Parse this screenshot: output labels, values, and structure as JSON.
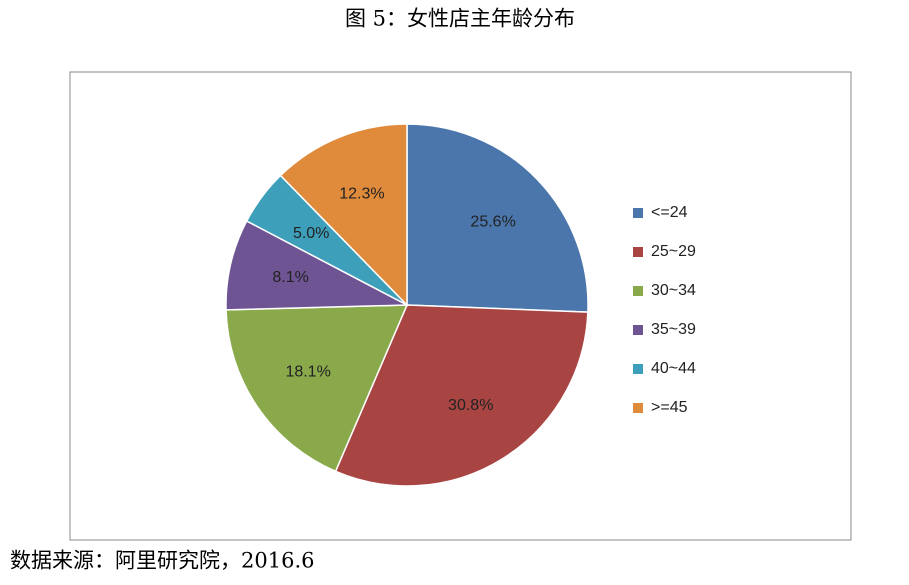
{
  "chart_data": {
    "type": "pie",
    "title": "图 5：女性店主年龄分布",
    "source": "数据来源：阿里研究院，2016.6",
    "categories": [
      "<=24",
      "25~29",
      "30~34",
      "35~39",
      "40~44",
      ">=45"
    ],
    "values": [
      25.6,
      30.8,
      18.1,
      8.1,
      5.0,
      12.3
    ],
    "value_labels": [
      "25.6%",
      "30.8%",
      "18.1%",
      "8.1%",
      "5.0%",
      "12.3%"
    ],
    "colors": [
      "#4a76ac",
      "#a84442",
      "#8aa94b",
      "#6f5494",
      "#3e9fba",
      "#e08a3b"
    ],
    "legend": "right"
  }
}
